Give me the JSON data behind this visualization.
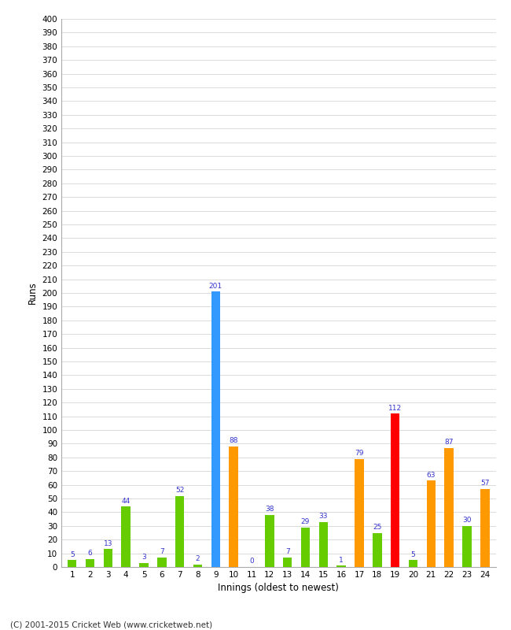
{
  "xlabel": "Innings (oldest to newest)",
  "ylabel": "Runs",
  "copyright": "(C) 2001-2015 Cricket Web (www.cricketweb.net)",
  "categories": [
    1,
    2,
    3,
    4,
    5,
    6,
    7,
    8,
    9,
    10,
    11,
    12,
    13,
    14,
    15,
    16,
    17,
    18,
    19,
    20,
    21,
    22,
    23,
    24
  ],
  "values": [
    5,
    6,
    13,
    44,
    3,
    7,
    52,
    2,
    201,
    88,
    0,
    38,
    7,
    29,
    33,
    1,
    79,
    25,
    112,
    5,
    63,
    87,
    30,
    57
  ],
  "colors": [
    "#66cc00",
    "#66cc00",
    "#66cc00",
    "#66cc00",
    "#66cc00",
    "#66cc00",
    "#66cc00",
    "#66cc00",
    "#3399ff",
    "#ff9900",
    "#66cc00",
    "#66cc00",
    "#66cc00",
    "#66cc00",
    "#66cc00",
    "#66cc00",
    "#ff9900",
    "#66cc00",
    "#ff0000",
    "#66cc00",
    "#ff9900",
    "#ff9900",
    "#66cc00",
    "#ff9900"
  ],
  "ylim": [
    0,
    400
  ],
  "background_color": "#ffffff",
  "grid_color": "#cccccc",
  "label_color": "#3333cc",
  "label_fontsize": 6.5,
  "tick_fontsize": 7.5,
  "axis_label_fontsize": 8.5,
  "figsize": [
    6.5,
    8.0
  ],
  "dpi": 100,
  "bar_width": 0.5
}
